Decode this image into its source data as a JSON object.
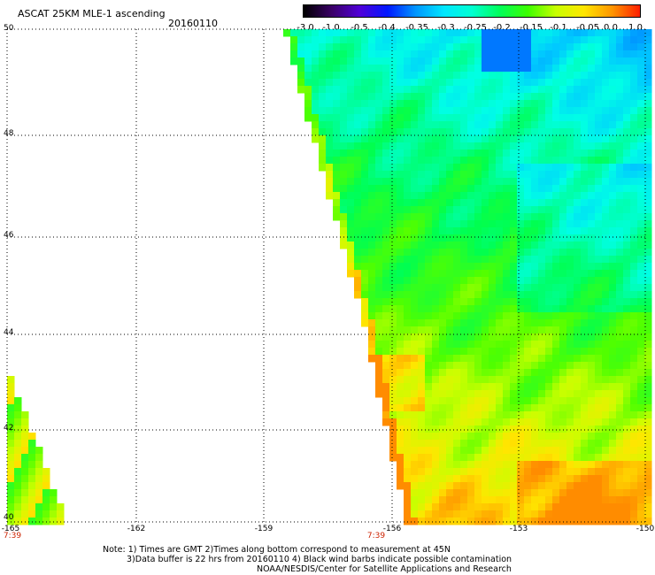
{
  "header": {
    "title": "ASCAT 25KM MLE-1 ascending",
    "date": "20160110"
  },
  "colorbar": {
    "labels": [
      "-3.0",
      "-1.0",
      "-0.5",
      "-0.4",
      "-0.35",
      "-0.3",
      "-0.25",
      "-0.2",
      "-0.15",
      "-0.1",
      "-0.05",
      "0.0",
      "1.0"
    ],
    "colors": [
      "#000000",
      "#3a0066",
      "#5000d8",
      "#0018ff",
      "#0096ff",
      "#00e6ff",
      "#00ffd2",
      "#00ff5a",
      "#3cff00",
      "#c8ff00",
      "#ffe600",
      "#ff9600",
      "#ff1e00"
    ]
  },
  "map": {
    "lat_labels": [
      "50",
      "48",
      "46",
      "44",
      "42",
      "40"
    ],
    "lon_labels": [
      "-165",
      "-162",
      "-159",
      "-156",
      "-153",
      "-150"
    ],
    "time_labels": [
      "7:39",
      "7:39"
    ]
  },
  "notes": [
    "Note: 1) Times are GMT 2)Times along bottom correspond to measurement at 45N",
    "3)Data buffer is 22 hrs from 20160110 4) Black wind barbs indicate possible contamination",
    "NOAA/NESDIS/Center for Satellite Applications and Research"
  ]
}
